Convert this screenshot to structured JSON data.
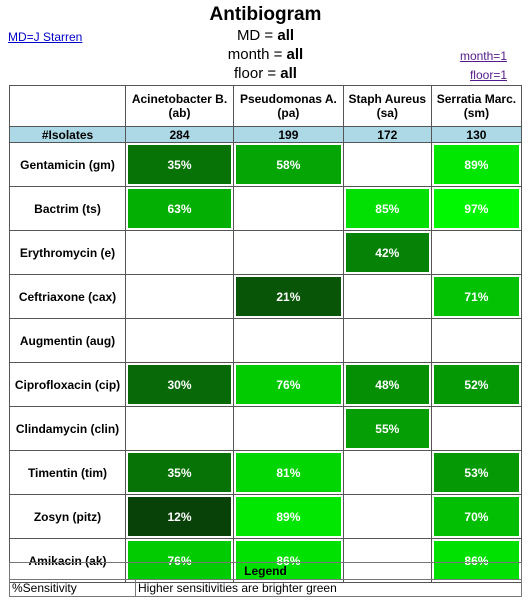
{
  "header": {
    "title": "Antibiogram",
    "md_link": "MD=J Starren",
    "filters": [
      {
        "label": "MD = ",
        "value": "all"
      },
      {
        "label": "month = ",
        "value": "all"
      },
      {
        "label": "floor = ",
        "value": "all"
      }
    ],
    "month_link": "month=1",
    "floor_link": "floor=1"
  },
  "table": {
    "organisms": [
      {
        "name": "Acinetobacter B.",
        "abbr": "(ab)"
      },
      {
        "name": "Pseudomonas A.",
        "abbr": "(pa)"
      },
      {
        "name": "Staph Aureus",
        "abbr": "(sa)"
      },
      {
        "name": "Serratia Marc.",
        "abbr": "(sm)"
      }
    ],
    "isolates_label": "#Isolates",
    "isolates": [
      "284",
      "199",
      "172",
      "130"
    ],
    "rows": [
      {
        "drug": "Gentamicin (gm)",
        "cells": [
          {
            "value": 35,
            "text": "35%"
          },
          {
            "value": 58,
            "text": "58%"
          },
          null,
          {
            "value": 89,
            "text": "89%"
          }
        ]
      },
      {
        "drug": "Bactrim (ts)",
        "cells": [
          {
            "value": 63,
            "text": "63%"
          },
          null,
          {
            "value": 85,
            "text": "85%"
          },
          {
            "value": 97,
            "text": "97%"
          }
        ]
      },
      {
        "drug": "Erythromycin (e)",
        "cells": [
          null,
          null,
          {
            "value": 42,
            "text": "42%"
          },
          null
        ]
      },
      {
        "drug": "Ceftriaxone (cax)",
        "cells": [
          null,
          {
            "value": 21,
            "text": "21%"
          },
          null,
          {
            "value": 71,
            "text": "71%"
          }
        ]
      },
      {
        "drug": "Augmentin (aug)",
        "cells": [
          null,
          null,
          null,
          null
        ]
      },
      {
        "drug": "Ciprofloxacin (cip)",
        "cells": [
          {
            "value": 30,
            "text": "30%"
          },
          {
            "value": 76,
            "text": "76%"
          },
          {
            "value": 48,
            "text": "48%"
          },
          {
            "value": 52,
            "text": "52%"
          }
        ]
      },
      {
        "drug": "Clindamycin (clin)",
        "cells": [
          null,
          null,
          {
            "value": 55,
            "text": "55%"
          },
          null
        ]
      },
      {
        "drug": "Timentin (tim)",
        "cells": [
          {
            "value": 35,
            "text": "35%"
          },
          {
            "value": 81,
            "text": "81%"
          },
          null,
          {
            "value": 53,
            "text": "53%"
          }
        ]
      },
      {
        "drug": "Zosyn (pitz)",
        "cells": [
          {
            "value": 12,
            "text": "12%"
          },
          {
            "value": 89,
            "text": "89%"
          },
          null,
          {
            "value": 70,
            "text": "70%"
          }
        ]
      },
      {
        "drug": "Amikacin (ak)",
        "cells": [
          {
            "value": 76,
            "text": "76%"
          },
          {
            "value": 86,
            "text": "86%"
          },
          null,
          {
            "value": 86,
            "text": "86%"
          }
        ]
      }
    ]
  },
  "legend": {
    "title": "Legend",
    "key": "%Sensitivity",
    "description": "Higher sensitivities are brighter green"
  },
  "colors": {
    "isolates_row": "#add8e6",
    "green_dark": "#0a2a0a",
    "green_bright": "#00ff00"
  }
}
